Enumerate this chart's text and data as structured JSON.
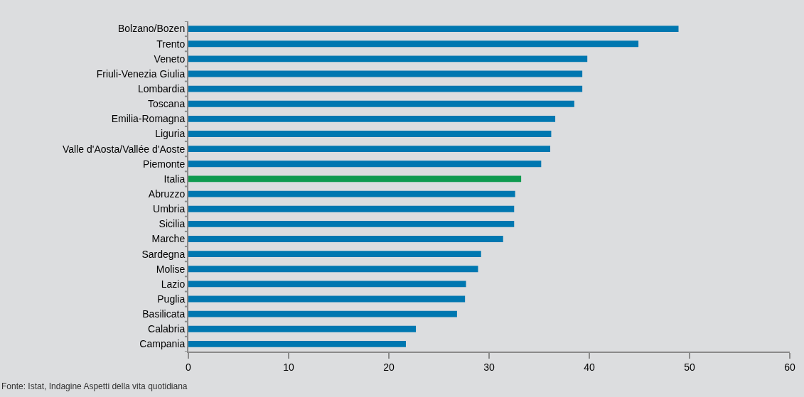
{
  "chart_data": {
    "type": "bar",
    "orientation": "horizontal",
    "categories": [
      "Bolzano/Bozen",
      "Trento",
      "Veneto",
      "Friuli-Venezia Giulia",
      "Lombardia",
      "Toscana",
      "Emilia-Romagna",
      "Liguria",
      "Valle d'Aosta/Vallée d'Aoste",
      "Piemonte",
      "Italia",
      "Abruzzo",
      "Umbria",
      "Sicilia",
      "Marche",
      "Sardegna",
      "Molise",
      "Lazio",
      "Puglia",
      "Basilicata",
      "Calabria",
      "Campania"
    ],
    "values": [
      48.9,
      44.9,
      39.8,
      39.3,
      39.3,
      38.5,
      36.6,
      36.2,
      36.1,
      35.2,
      33.2,
      32.6,
      32.5,
      32.5,
      31.4,
      29.2,
      28.9,
      27.7,
      27.6,
      26.8,
      22.7,
      21.7
    ],
    "colors": [
      "#0077b0",
      "#0077b0",
      "#0077b0",
      "#0077b0",
      "#0077b0",
      "#0077b0",
      "#0077b0",
      "#0077b0",
      "#0077b0",
      "#0077b0",
      "#0f9a4f",
      "#0077b0",
      "#0077b0",
      "#0077b0",
      "#0077b0",
      "#0077b0",
      "#0077b0",
      "#0077b0",
      "#0077b0",
      "#0077b0",
      "#0077b0",
      "#0077b0"
    ],
    "xlim": [
      0,
      60
    ],
    "xticks": [
      0,
      10,
      20,
      30,
      40,
      50,
      60
    ],
    "grid": false,
    "annotations": [
      "Fonte: Istat, Indagine Aspetti della vita quotidiana"
    ]
  }
}
